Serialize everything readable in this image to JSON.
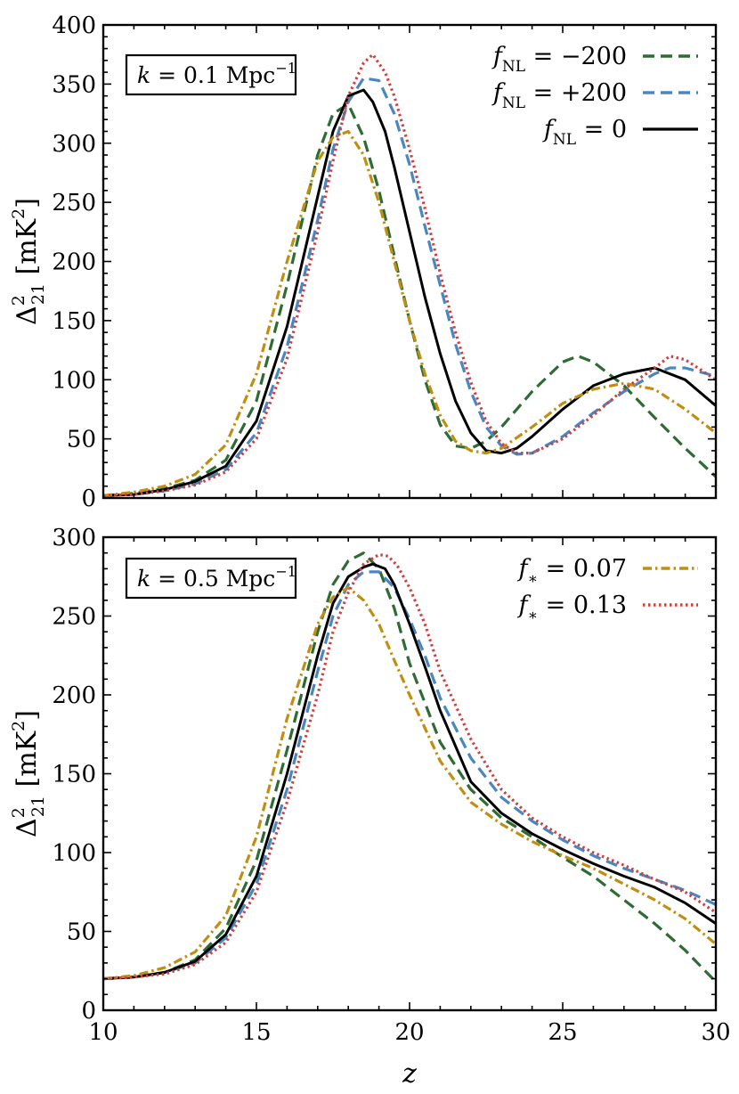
{
  "chart_data": [
    {
      "type": "line",
      "panel": "top",
      "annotation": "k = 0.1 Mpc⁻¹",
      "annotation_parts": {
        "lhs": "k",
        "eq": " = 0.1 Mpc",
        "exp": "−1"
      },
      "xlim": [
        10,
        30
      ],
      "ylim": [
        0,
        400
      ],
      "xticks": [
        10,
        15,
        20,
        25,
        30
      ],
      "yticks": [
        0,
        50,
        100,
        150,
        200,
        250,
        300,
        350,
        400
      ],
      "xlabel": "z",
      "ylabel": "Δ²₂₁ [mK²]",
      "ylabel_parts": {
        "sym": "Δ",
        "sup": "2",
        "sub": "21",
        "unit": " [mK",
        "unit_sup": "2",
        "close": "]"
      },
      "legend_position": "top-right",
      "legend": [
        {
          "label": "f_NL = −200",
          "parts": {
            "sym": "f",
            "sub": "NL",
            "rest": " = −200"
          },
          "series_id": "fnl_m200"
        },
        {
          "label": "f_NL = +200",
          "parts": {
            "sym": "f",
            "sub": "NL",
            "rest": " = +200"
          },
          "series_id": "fnl_p200"
        },
        {
          "label": "f_NL = 0",
          "parts": {
            "sym": "f",
            "sub": "NL",
            "rest": " = 0"
          },
          "series_id": "fnl_0"
        }
      ],
      "series": [
        {
          "id": "fnl_m200",
          "name": "f_NL = −200",
          "color": "#2f6b34",
          "style": "dashed",
          "x": [
            10,
            11,
            12,
            13,
            14,
            15,
            16,
            17,
            17.5,
            18,
            18.5,
            19,
            19.5,
            20,
            20.5,
            21,
            21.5,
            22,
            22.5,
            23,
            24,
            25,
            25.5,
            26,
            27,
            28,
            29,
            30
          ],
          "y": [
            2,
            4,
            8,
            15,
            32,
            82,
            180,
            290,
            325,
            333,
            305,
            260,
            205,
            150,
            100,
            62,
            44,
            42,
            48,
            60,
            90,
            115,
            120,
            115,
            95,
            68,
            42,
            18
          ]
        },
        {
          "id": "fnl_p200",
          "name": "f_NL = +200",
          "color": "#4a86c0",
          "style": "dashed",
          "x": [
            10,
            11,
            12,
            13,
            14,
            15,
            16,
            17,
            17.5,
            18,
            18.5,
            19,
            19.5,
            20,
            20.5,
            21,
            21.5,
            22,
            22.5,
            23,
            23.5,
            24,
            25,
            26,
            27,
            28,
            28.5,
            29,
            30
          ],
          "y": [
            2,
            3,
            6,
            12,
            24,
            55,
            128,
            235,
            295,
            335,
            355,
            353,
            325,
            282,
            230,
            180,
            130,
            90,
            60,
            44,
            37,
            38,
            52,
            72,
            90,
            105,
            110,
            110,
            103
          ]
        },
        {
          "id": "fnl_0",
          "name": "f_NL = 0",
          "color": "#000000",
          "style": "solid",
          "x": [
            10,
            11,
            12,
            13,
            14,
            15,
            16,
            17,
            17.5,
            18,
            18.5,
            18.8,
            19.2,
            19.5,
            20,
            20.5,
            21,
            21.5,
            22,
            22.5,
            23,
            23.5,
            24,
            25,
            26,
            27,
            28,
            29,
            30
          ],
          "y": [
            2,
            3,
            7,
            14,
            27,
            65,
            145,
            255,
            310,
            340,
            345,
            335,
            310,
            280,
            225,
            170,
            122,
            82,
            55,
            40,
            38,
            42,
            52,
            75,
            95,
            105,
            110,
            100,
            78
          ]
        },
        {
          "id": "fstar_007",
          "name": "f_* = 0.07",
          "color": "#c08f12",
          "style": "dashdot",
          "x": [
            10,
            11,
            12,
            13,
            14,
            15,
            16,
            17,
            17.5,
            18,
            18.5,
            19,
            19.5,
            20,
            20.5,
            21,
            21.5,
            22,
            22.5,
            23,
            24,
            25,
            26,
            27,
            28,
            29,
            30
          ],
          "y": [
            2,
            5,
            10,
            20,
            45,
            105,
            200,
            285,
            305,
            310,
            290,
            250,
            200,
            150,
            105,
            70,
            48,
            40,
            38,
            42,
            60,
            80,
            92,
            97,
            92,
            75,
            55
          ]
        },
        {
          "id": "fstar_013",
          "name": "f_* = 0.13",
          "color": "#d0403f",
          "style": "dotted",
          "x": [
            10,
            11,
            12,
            13,
            14,
            15,
            16,
            17,
            17.5,
            18,
            18.5,
            18.8,
            19.2,
            19.5,
            20,
            20.5,
            21,
            21.5,
            22,
            22.5,
            23,
            23.5,
            24,
            25,
            26,
            27,
            28,
            28.5,
            29,
            30
          ],
          "y": [
            2,
            3,
            6,
            11,
            22,
            50,
            118,
            225,
            285,
            340,
            368,
            375,
            360,
            340,
            295,
            245,
            190,
            140,
            98,
            65,
            46,
            38,
            38,
            50,
            70,
            92,
            110,
            120,
            117,
            100
          ]
        }
      ]
    },
    {
      "type": "line",
      "panel": "bottom",
      "annotation": "k = 0.5 Mpc⁻¹",
      "annotation_parts": {
        "lhs": "k",
        "eq": " = 0.5 Mpc",
        "exp": "−1"
      },
      "xlim": [
        10,
        30
      ],
      "ylim": [
        0,
        300
      ],
      "xticks": [
        10,
        15,
        20,
        25,
        30
      ],
      "yticks": [
        0,
        50,
        100,
        150,
        200,
        250,
        300
      ],
      "xlabel": "z",
      "ylabel": "Δ²₂₁ [mK²]",
      "ylabel_parts": {
        "sym": "Δ",
        "sup": "2",
        "sub": "21",
        "unit": " [mK",
        "unit_sup": "2",
        "close": "]"
      },
      "legend_position": "top-right",
      "legend": [
        {
          "label": "f_* = 0.07",
          "parts": {
            "sym": "f",
            "sub": "∗",
            "rest": " = 0.07"
          },
          "series_id": "fstar_007"
        },
        {
          "label": "f_* = 0.13",
          "parts": {
            "sym": "f",
            "sub": "∗",
            "rest": " = 0.13"
          },
          "series_id": "fstar_013"
        }
      ],
      "series": [
        {
          "id": "fnl_m200",
          "name": "f_NL = −200",
          "color": "#2f6b34",
          "style": "dashed",
          "x": [
            10,
            11,
            12,
            13,
            14,
            15,
            16,
            17,
            17.5,
            18,
            18.5,
            19,
            19.5,
            20,
            21,
            22,
            23,
            24,
            25,
            26,
            27,
            28,
            29,
            30
          ],
          "y": [
            20,
            21,
            24,
            32,
            52,
            95,
            165,
            240,
            270,
            285,
            290,
            280,
            255,
            220,
            170,
            140,
            122,
            110,
            97,
            85,
            70,
            55,
            38,
            18
          ]
        },
        {
          "id": "fnl_p200",
          "name": "f_NL = +200",
          "color": "#4a86c0",
          "style": "dashed",
          "x": [
            10,
            11,
            12,
            13,
            14,
            15,
            16,
            17,
            17.5,
            18,
            18.5,
            19,
            19.5,
            20,
            20.5,
            21,
            22,
            23,
            24,
            25,
            26,
            27,
            28,
            29,
            30
          ],
          "y": [
            20,
            21,
            24,
            30,
            46,
            80,
            140,
            215,
            250,
            270,
            278,
            278,
            268,
            248,
            225,
            198,
            160,
            135,
            120,
            108,
            98,
            90,
            83,
            76,
            67
          ]
        },
        {
          "id": "fnl_0",
          "name": "f_NL = 0",
          "color": "#000000",
          "style": "solid",
          "x": [
            10,
            11,
            12,
            13,
            14,
            15,
            16,
            17,
            17.5,
            18,
            18.5,
            18.8,
            19.2,
            19.5,
            20,
            20.5,
            21,
            22,
            23,
            24,
            25,
            26,
            27,
            28,
            29,
            30
          ],
          "y": [
            20,
            21,
            24,
            31,
            48,
            85,
            150,
            225,
            258,
            275,
            281,
            283,
            280,
            270,
            245,
            218,
            190,
            145,
            125,
            112,
            102,
            93,
            85,
            78,
            68,
            55
          ]
        },
        {
          "id": "fstar_007",
          "name": "f_* = 0.07",
          "color": "#c08f12",
          "style": "dashdot",
          "x": [
            10,
            11,
            12,
            13,
            14,
            15,
            16,
            17,
            17.5,
            18,
            18.5,
            19,
            19.5,
            20,
            21,
            22,
            23,
            24,
            25,
            26,
            27,
            28,
            29,
            30
          ],
          "y": [
            20,
            22,
            27,
            37,
            60,
            110,
            185,
            245,
            262,
            268,
            260,
            245,
            222,
            200,
            158,
            132,
            118,
            107,
            98,
            90,
            80,
            70,
            58,
            42
          ]
        },
        {
          "id": "fstar_013",
          "name": "f_* = 0.13",
          "color": "#d0403f",
          "style": "dotted",
          "x": [
            10,
            11,
            12,
            13,
            14,
            15,
            16,
            17,
            17.5,
            18,
            18.5,
            19,
            19.3,
            19.6,
            20,
            20.5,
            21,
            22,
            23,
            24,
            25,
            26,
            27,
            28,
            29,
            30
          ],
          "y": [
            20,
            21,
            23,
            29,
            43,
            75,
            132,
            200,
            240,
            265,
            283,
            289,
            288,
            282,
            268,
            245,
            215,
            172,
            140,
            122,
            110,
            100,
            92,
            83,
            75,
            62
          ]
        }
      ]
    }
  ]
}
